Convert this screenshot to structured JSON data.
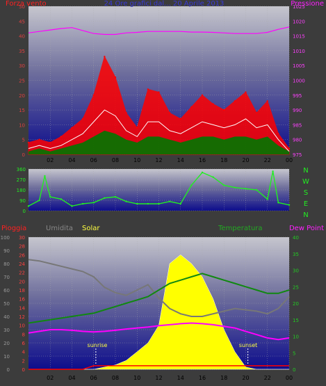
{
  "header": {
    "left_label": "Forza vento",
    "center_label": "24 Ore grafici dal... 20 Aprile 2013",
    "right_label": "Pressione"
  },
  "mid": {
    "compass": [
      "N",
      "W",
      "S",
      "E",
      "N"
    ]
  },
  "bottom_header": {
    "rain_label": "Pioggia",
    "hum_label": "Umidita",
    "solar_label": "Solar",
    "temp_label": "Temperatura",
    "dew_label": "Dew Point"
  },
  "annotations": {
    "sunrise": "sunrise",
    "sunset": "sunset"
  },
  "colors": {
    "wind": "#ff0000",
    "gust": "#ff0000",
    "avg": "#ffffff",
    "green": "#007700",
    "pressure": "#ff00ff",
    "direction": "#22ee22",
    "humidity": "#777777",
    "temperature": "#118811",
    "dewpoint": "#ff00ff",
    "solar": "#ffff00",
    "rain": "#ff0000"
  },
  "chart_data": [
    {
      "type": "area",
      "name": "wind-pressure",
      "x_ticks": [
        "02",
        "04",
        "06",
        "08",
        "10",
        "12",
        "14",
        "16",
        "18",
        "20",
        "22",
        "00"
      ],
      "left_axis": {
        "ticks": [
          0,
          5,
          10,
          15,
          20,
          25,
          30,
          35,
          40,
          45,
          50
        ],
        "ylim": [
          0,
          50
        ]
      },
      "right_axis": {
        "ticks": [
          975,
          980,
          985,
          990,
          995,
          1000,
          1005,
          1010,
          1015,
          1020,
          1025
        ],
        "ylim": [
          975,
          1025
        ]
      },
      "x": [
        0,
        1,
        2,
        3,
        4,
        5,
        6,
        7,
        8,
        9,
        10,
        11,
        12,
        13,
        14,
        15,
        16,
        17,
        18,
        19,
        20,
        21,
        22,
        23,
        24
      ],
      "series": [
        {
          "name": "Forza vento",
          "values": [
            4,
            5,
            4,
            6,
            9,
            12,
            20,
            33,
            26,
            14,
            9,
            22,
            21,
            14,
            12,
            16,
            20,
            17,
            15,
            18,
            21,
            14,
            18,
            7,
            2
          ]
        },
        {
          "values": [
            2,
            3,
            2,
            3,
            5,
            7,
            11,
            15,
            13,
            8,
            6,
            11,
            11,
            8,
            7,
            9,
            11,
            10,
            9,
            10,
            12,
            9,
            10,
            5,
            1
          ]
        },
        {
          "values": [
            1,
            2,
            1,
            2,
            3,
            4,
            6,
            8,
            7,
            5,
            4,
            6,
            6,
            5,
            4,
            5,
            6,
            6,
            5,
            6,
            6,
            5,
            6,
            3,
            1
          ]
        },
        {
          "name": "Pressione",
          "values": [
            1016,
            1016.5,
            1017,
            1017.5,
            1017.8,
            1016.8,
            1015.8,
            1015.5,
            1015.5,
            1016,
            1016.2,
            1016.5,
            1016.5,
            1016.5,
            1016.5,
            1016.3,
            1016.3,
            1016.2,
            1016,
            1015.8,
            1015.8,
            1015.8,
            1016.2,
            1017.2,
            1018
          ]
        }
      ]
    },
    {
      "type": "line",
      "name": "wind-direction",
      "x_ticks": [
        "02",
        "04",
        "06",
        "08",
        "10",
        "12",
        "14",
        "16",
        "18",
        "20",
        "22",
        "00"
      ],
      "y_ticks": [
        0,
        90,
        180,
        270,
        360
      ],
      "ylim": [
        0,
        360
      ],
      "x": [
        0,
        1,
        1.5,
        2,
        3,
        4,
        5,
        6,
        7,
        8,
        9,
        10,
        11,
        12,
        13,
        14,
        15,
        16,
        17,
        18,
        19,
        20,
        21,
        22,
        22.5,
        23,
        24
      ],
      "series": [
        {
          "values": [
            40,
            90,
            300,
            120,
            100,
            40,
            60,
            70,
            110,
            120,
            80,
            60,
            60,
            60,
            80,
            60,
            220,
            330,
            290,
            220,
            200,
            190,
            180,
            100,
            340,
            70,
            50
          ]
        }
      ]
    },
    {
      "type": "line",
      "name": "rain-humidity-solar-temperature",
      "x_ticks": [
        "02",
        "04",
        "06",
        "08",
        "10",
        "12",
        "14",
        "16",
        "18",
        "20",
        "22",
        "00"
      ],
      "axes": {
        "humidity": {
          "ticks": [
            0,
            10,
            20,
            30,
            40,
            50,
            60,
            70,
            80,
            90,
            100
          ],
          "ylim": [
            0,
            100
          ]
        },
        "rain": {
          "ticks": [
            0,
            2,
            4,
            6,
            8,
            10,
            12,
            14,
            16,
            18,
            20,
            22,
            24,
            26,
            28,
            30
          ],
          "ylim": [
            0,
            30
          ]
        },
        "temperature": {
          "ticks": [
            0,
            5,
            10,
            15,
            20,
            25,
            30,
            35,
            40
          ],
          "ylim": [
            0,
            40
          ]
        }
      },
      "x": [
        0,
        1,
        2,
        3,
        4,
        5,
        6,
        7,
        8,
        9,
        10,
        11,
        12,
        13,
        14,
        15,
        16,
        17,
        18,
        19,
        20,
        21,
        22,
        23,
        24
      ],
      "series": [
        {
          "name": "Umidita",
          "values": [
            83,
            82,
            80,
            78,
            76,
            74,
            70,
            62,
            58,
            56,
            60,
            64,
            54,
            46,
            42,
            40,
            40,
            42,
            44,
            46,
            45,
            44,
            42,
            46,
            55
          ]
        },
        {
          "name": "Temperatura",
          "values": [
            14,
            14.5,
            15,
            15.5,
            16,
            16.5,
            17,
            18,
            19,
            20,
            21,
            22,
            24,
            26,
            27,
            28,
            29,
            28,
            27,
            26,
            25,
            24,
            23,
            23,
            24
          ]
        },
        {
          "name": "Dew Point",
          "values": [
            11,
            11.5,
            12,
            12,
            11.8,
            11.5,
            11.3,
            11.5,
            11.8,
            12.2,
            12.5,
            12.8,
            13.2,
            13.5,
            13.8,
            14,
            13.8,
            13.5,
            13,
            12.5,
            11.5,
            10.5,
            9.5,
            9,
            9.5
          ]
        },
        {
          "name": "Solar",
          "values": [
            0,
            0,
            0,
            0,
            0,
            0,
            0,
            0.5,
            1,
            2,
            4,
            6,
            10,
            24,
            26,
            24,
            21,
            16,
            9,
            4,
            0.5,
            0,
            0,
            0,
            0
          ]
        },
        {
          "name": "Pioggia",
          "values": [
            0,
            0,
            0,
            0,
            0,
            0,
            0.8,
            0.8,
            0.8,
            0.8,
            0.8,
            0.8,
            0.8,
            0.8,
            0.8,
            0.8,
            0.8,
            0.8,
            0.8,
            0.8,
            0.8,
            0.8,
            0.8,
            0.8,
            0.8
          ]
        }
      ],
      "sunrise_x": 6.2,
      "sunset_x": 20.2
    }
  ]
}
